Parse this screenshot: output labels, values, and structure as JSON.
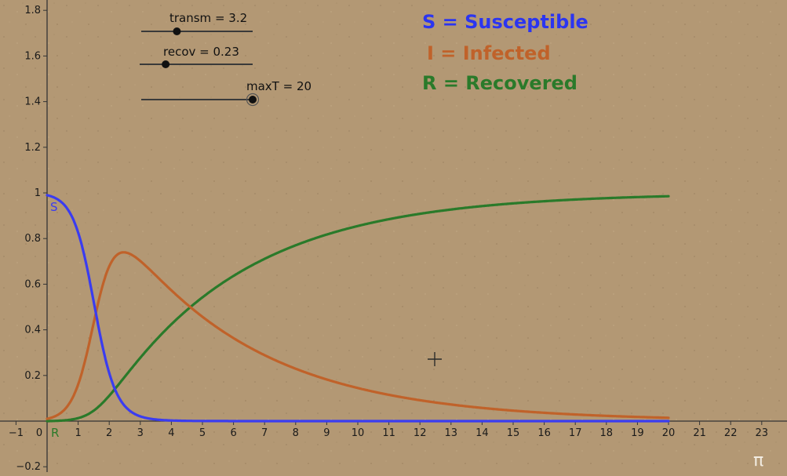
{
  "sliders": [
    {
      "label": "transm = 3.2",
      "min": 0,
      "max": 10,
      "value": 3.2
    },
    {
      "label": "recov = 0.23",
      "min": 0,
      "max": 1,
      "value": 0.23
    },
    {
      "label": "maxT = 20",
      "min": 0,
      "max": 20,
      "value": 20
    }
  ],
  "legend": [
    {
      "label": "S = Susceptible",
      "color": "#2b35f0"
    },
    {
      "label": "I = Infected",
      "color": "#c0622a"
    },
    {
      "label": "R = Recovered",
      "color": "#2a7a2a"
    }
  ],
  "curve_labels": {
    "s": "S",
    "r": "R"
  },
  "corner_symbol": "π",
  "chart_data": {
    "type": "line",
    "xlim": [
      -1.5,
      24
    ],
    "ylim": [
      -0.22,
      1.82
    ],
    "x_ticks": [
      -1,
      0,
      1,
      2,
      3,
      4,
      5,
      6,
      7,
      8,
      9,
      10,
      11,
      12,
      13,
      14,
      15,
      16,
      17,
      18,
      19,
      20,
      21,
      22,
      23
    ],
    "y_ticks": [
      -0.2,
      0.2,
      0.4,
      0.6,
      0.8,
      1,
      1.2,
      1.4,
      1.6,
      1.8
    ],
    "model": {
      "transm": 3.2,
      "recov": 0.23,
      "maxT": 20,
      "S0": 0.99,
      "I0": 0.01,
      "R0": 0
    },
    "series": [
      {
        "name": "S",
        "color": "#3a3cf0",
        "x": [
          0,
          1,
          1.5,
          2,
          3,
          4,
          6,
          10,
          20
        ],
        "y": [
          0.99,
          0.8,
          0.45,
          0.15,
          0.03,
          0.008,
          0.002,
          0.001,
          0.001
        ]
      },
      {
        "name": "I",
        "color": "#c0622a",
        "x": [
          0,
          1,
          1.5,
          2,
          2.4,
          3,
          4,
          5,
          6,
          8,
          10,
          12,
          15,
          20
        ],
        "y": [
          0.01,
          0.18,
          0.46,
          0.7,
          0.74,
          0.71,
          0.56,
          0.44,
          0.35,
          0.22,
          0.14,
          0.09,
          0.05,
          0.015
        ]
      },
      {
        "name": "R",
        "color": "#2a7a2a",
        "x": [
          0,
          1,
          2,
          3,
          4,
          5,
          6,
          8,
          10,
          12,
          15,
          20
        ],
        "y": [
          0,
          0.02,
          0.14,
          0.31,
          0.44,
          0.56,
          0.65,
          0.78,
          0.86,
          0.91,
          0.95,
          0.985
        ]
      }
    ]
  }
}
